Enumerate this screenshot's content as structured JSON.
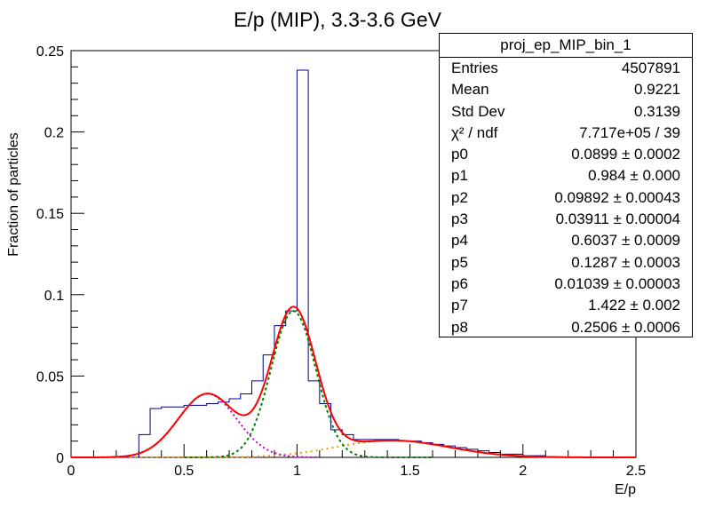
{
  "colors": {
    "histogram": "#00008b",
    "total_fit": "#ff0000",
    "component_1": "#cc00cc",
    "component_2": "#008000",
    "component_3": "#ff9900"
  },
  "chart_data": {
    "type": "histogram",
    "title": "E/p (MIP), 3.3-3.6 GeV",
    "xlabel": "E/p",
    "ylabel": "Fraction of particles",
    "xlim": [
      0,
      2.5
    ],
    "ylim": [
      0,
      0.25
    ],
    "xticks": [
      "0",
      "0.5",
      "1",
      "1.5",
      "2",
      "2.5"
    ],
    "yticks": [
      "0",
      "0.05",
      "0.1",
      "0.15",
      "0.2",
      "0.25"
    ],
    "bin_width": 0.05,
    "bin_edges_start": 0.3,
    "bin_values": [
      0.014,
      0.03,
      0.031,
      0.031,
      0.032,
      0.032,
      0.033,
      0.034,
      0.036,
      0.039,
      0.047,
      0.063,
      0.081,
      0.09,
      0.238,
      0.047,
      0.033,
      0.017,
      0.014,
      0.011,
      0.011,
      0.011,
      0.011,
      0.01,
      0.01,
      0.009,
      0.008,
      0.007,
      0.006,
      0.005,
      0.004,
      0.003,
      0.002,
      0.002,
      0.001,
      0.001,
      0.0005,
      0.0003,
      0.0002,
      0.0001
    ],
    "fit_parameters": {
      "p0": 0.0899,
      "p1": 0.984,
      "p2": 0.09892,
      "p3": 0.03911,
      "p4": 0.6037,
      "p5": 0.1287,
      "p6": 0.01039,
      "p7": 1.422,
      "p8": 0.2506
    },
    "grid": false,
    "legend": "top-right stats box"
  },
  "stats_box": {
    "name": "proj_ep_MIP_bin_1",
    "rows": [
      {
        "key": "Entries",
        "value": "4507891"
      },
      {
        "key": "Mean",
        "value": "0.9221"
      },
      {
        "key": "Std Dev",
        "value": "0.3139"
      },
      {
        "key": "χ² / ndf",
        "value": "7.717e+05 / 39"
      },
      {
        "key": "p0",
        "value": "0.0899 ± 0.0002"
      },
      {
        "key": "p1",
        "value": "0.984 ± 0.000"
      },
      {
        "key": "p2",
        "value": "0.09892 ± 0.00043"
      },
      {
        "key": "p3",
        "value": "0.03911 ± 0.00004"
      },
      {
        "key": "p4",
        "value": "0.6037 ± 0.0009"
      },
      {
        "key": "p5",
        "value": "0.1287 ± 0.0003"
      },
      {
        "key": "p6",
        "value": "0.01039 ± 0.00003"
      },
      {
        "key": "p7",
        "value": "1.422 ± 0.002"
      },
      {
        "key": "p8",
        "value": "0.2506 ± 0.0006"
      }
    ]
  }
}
